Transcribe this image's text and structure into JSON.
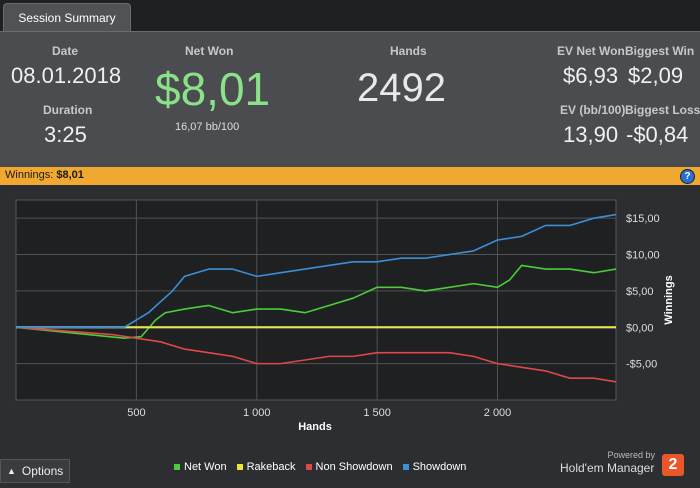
{
  "tab": {
    "label": "Session Summary"
  },
  "stats": {
    "date_label": "Date",
    "date_value": "08.01.2018",
    "duration_label": "Duration",
    "duration_value": "3:25",
    "net_won_label": "Net Won",
    "net_won_value": "$8,01",
    "net_won_rate": "16,07 bb/100",
    "hands_label": "Hands",
    "hands_value": "2492",
    "ev_net_won_label": "EV Net Won",
    "ev_net_won_value": "$6,93",
    "biggest_win_label": "Biggest Win",
    "biggest_win_value": "$2,09",
    "ev_bb_label": "EV (bb/100)",
    "ev_bb_value": "13,90",
    "biggest_loss_label": "Biggest Loss",
    "biggest_loss_value": "-$0,84"
  },
  "strip": {
    "label": "Winnings:",
    "value": "$8,01",
    "help_icon": "question-icon"
  },
  "colors": {
    "net_won": "#4ccc3a",
    "rakeback": "#e8e830",
    "non_showdown": "#e04848",
    "showdown": "#3a8fd8",
    "accent_green": "#8be08a",
    "strip": "#f0a830"
  },
  "chart_data": {
    "type": "line",
    "xlabel": "Hands",
    "ylabel": "Winnings",
    "xlim": [
      0,
      2492
    ],
    "ylim": [
      -10,
      17.5
    ],
    "x_ticks": [
      500,
      1000,
      1500,
      2000
    ],
    "x_tick_labels": [
      "500",
      "1 000",
      "1 500",
      "2 000"
    ],
    "y_ticks": [
      15,
      10,
      5,
      0,
      -5
    ],
    "y_tick_labels": [
      "$15,00",
      "$10,00",
      "$5,00",
      "$0,00",
      "-$5,00"
    ],
    "grid": true,
    "legend_position": "bottom",
    "series": [
      {
        "name": "Net Won",
        "color": "#4ccc3a",
        "x": [
          0,
          150,
          300,
          450,
          520,
          580,
          620,
          700,
          800,
          900,
          1000,
          1100,
          1200,
          1300,
          1400,
          1500,
          1600,
          1700,
          1800,
          1900,
          2000,
          2050,
          2100,
          2200,
          2300,
          2400,
          2492
        ],
        "y": [
          0,
          -0.5,
          -1,
          -1.5,
          -1.3,
          1.0,
          2.0,
          2.5,
          3.0,
          2.0,
          2.5,
          2.5,
          2.0,
          3.0,
          4.0,
          5.5,
          5.5,
          5.0,
          5.5,
          6.0,
          5.5,
          6.5,
          8.5,
          8.0,
          8.0,
          7.5,
          8.0
        ]
      },
      {
        "name": "Rakeback",
        "color": "#e8e830",
        "x": [
          0,
          2492
        ],
        "y": [
          0,
          0
        ]
      },
      {
        "name": "Non Showdown",
        "color": "#e04848",
        "x": [
          0,
          200,
          400,
          500,
          600,
          700,
          800,
          900,
          1000,
          1100,
          1200,
          1300,
          1400,
          1500,
          1600,
          1700,
          1800,
          1900,
          2000,
          2100,
          2200,
          2300,
          2400,
          2492
        ],
        "y": [
          0,
          -0.5,
          -1.0,
          -1.5,
          -2.0,
          -3.0,
          -3.5,
          -4.0,
          -5.0,
          -5.0,
          -4.5,
          -4.0,
          -4.0,
          -3.5,
          -3.5,
          -3.5,
          -3.5,
          -4.0,
          -5.0,
          -5.5,
          -6.0,
          -7.0,
          -7.0,
          -7.5
        ]
      },
      {
        "name": "Showdown",
        "color": "#3a8fd8",
        "x": [
          0,
          150,
          300,
          450,
          550,
          600,
          650,
          700,
          800,
          900,
          1000,
          1100,
          1200,
          1300,
          1400,
          1500,
          1600,
          1700,
          1800,
          1900,
          2000,
          2100,
          2200,
          2300,
          2400,
          2492
        ],
        "y": [
          0,
          0,
          0,
          0,
          2.0,
          3.5,
          5.0,
          7.0,
          8.0,
          8.0,
          7.0,
          7.5,
          8.0,
          8.5,
          9.0,
          9.0,
          9.5,
          9.5,
          10.0,
          10.5,
          12.0,
          12.5,
          14.0,
          14.0,
          15.0,
          15.5
        ]
      }
    ]
  },
  "legend": [
    {
      "name": "Net Won",
      "color": "#4ccc3a"
    },
    {
      "name": "Rakeback",
      "color": "#e8e830"
    },
    {
      "name": "Non Showdown",
      "color": "#e04848"
    },
    {
      "name": "Showdown",
      "color": "#3a8fd8"
    }
  ],
  "footer": {
    "options_label": "Options",
    "powered_by": "Powered by",
    "brand": "Hold'em Manager",
    "brand_badge": "2",
    "chevron_icon": "chevron-up-icon"
  }
}
